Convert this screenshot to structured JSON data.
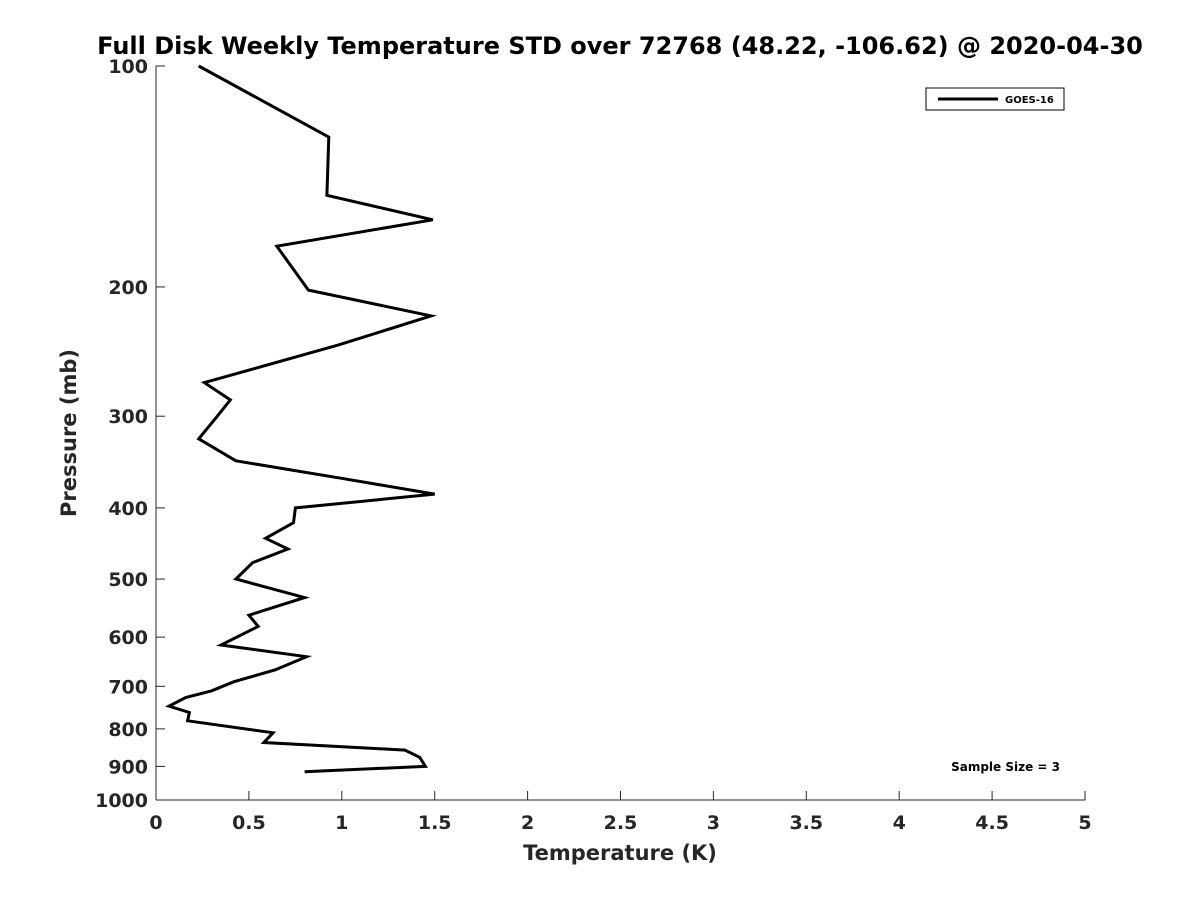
{
  "chart_data": {
    "type": "line",
    "title": "Full Disk Weekly Temperature STD over 72768 (48.22, -106.62) @ 2020-04-30",
    "xlabel": "Temperature (K)",
    "ylabel": "Pressure (mb)",
    "xlim": [
      0,
      5
    ],
    "ylim": [
      100,
      1000
    ],
    "y_scale": "log",
    "y_reversed": true,
    "x_ticks": [
      "0",
      "0.5",
      "1",
      "1.5",
      "2",
      "2.5",
      "3",
      "3.5",
      "4",
      "4.5",
      "5"
    ],
    "y_ticks": [
      "100",
      "200",
      "300",
      "400",
      "500",
      "600",
      "700",
      "800",
      "900",
      "1000"
    ],
    "legend_position": "top-right",
    "grid": false,
    "annotation": "Sample Size = 3",
    "series": [
      {
        "name": "GOES-16",
        "color": "#000000",
        "x": [
          0.23,
          0.93,
          0.92,
          1.49,
          0.65,
          0.82,
          1.48,
          0.98,
          0.26,
          0.4,
          0.33,
          0.23,
          0.43,
          1.01,
          1.5,
          0.75,
          0.74,
          0.59,
          0.71,
          0.52,
          0.43,
          0.8,
          0.5,
          0.55,
          0.35,
          0.81,
          0.64,
          0.42,
          0.3,
          0.16,
          0.07,
          0.18,
          0.17,
          0.63,
          0.58,
          1.34,
          1.42,
          1.45,
          0.8
        ],
        "y": [
          100,
          125,
          150,
          162,
          176,
          202,
          219,
          240,
          270,
          285,
          300,
          322,
          345,
          365,
          383,
          400,
          419,
          440,
          455,
          475,
          500,
          530,
          560,
          580,
          615,
          638,
          665,
          690,
          710,
          725,
          745,
          760,
          780,
          810,
          835,
          855,
          875,
          900,
          915
        ]
      }
    ]
  }
}
